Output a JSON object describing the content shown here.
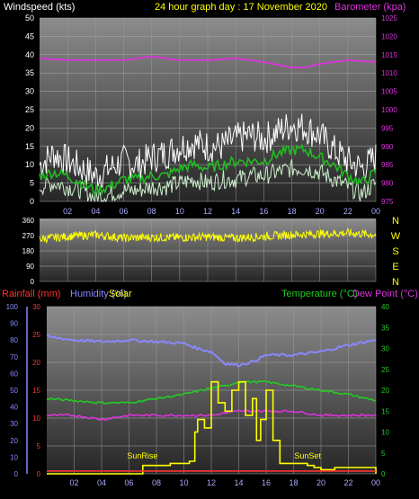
{
  "header": {
    "windspeed_label": "Windspeed (kts)",
    "title": "24 hour graph day : 17 November 2020",
    "barometer_label": "Barometer (kpa)"
  },
  "colors": {
    "background": "#000000",
    "panel_top": "#8a8a8a",
    "panel_bottom": "#2b2b2b",
    "windspeed": "#ffffff",
    "wind_avg": "#22bb22",
    "wind_light": "#cceecc",
    "barometer": "#dd33dd",
    "direction": "#ffff00",
    "rainfall": "#ff3333",
    "humidity": "#8888ff",
    "solar": "#ffff00",
    "temperature": "#22cc22",
    "dewpoint": "#dd33dd",
    "title": "#ffff00"
  },
  "chart_data": [
    {
      "type": "line",
      "name_panel": "wind",
      "x_ticks": [
        "02",
        "04",
        "06",
        "08",
        "10",
        "12",
        "14",
        "16",
        "18",
        "20",
        "22",
        "00"
      ],
      "y_left": {
        "label": "Windspeed (kts)",
        "range": [
          0,
          50
        ],
        "ticks": [
          0,
          5,
          10,
          15,
          20,
          25,
          30,
          35,
          40,
          45,
          50
        ]
      },
      "y_right": {
        "label": "Barometer (kpa)",
        "range": [
          975,
          1025
        ],
        "ticks": [
          975,
          980,
          985,
          990,
          995,
          1000,
          1005,
          1010,
          1015,
          1020,
          1025
        ]
      },
      "series": [
        {
          "kind": "gust",
          "hours": [
            0,
            1,
            2,
            3,
            4,
            5,
            6,
            7,
            8,
            9,
            10,
            11,
            12,
            13,
            14,
            15,
            16,
            17,
            18,
            19,
            20,
            21,
            22,
            23,
            24
          ],
          "values": [
            10,
            13,
            11,
            9,
            7,
            9,
            11,
            10,
            12,
            13,
            15,
            16,
            15,
            15,
            17,
            18,
            17,
            19,
            21,
            20,
            18,
            14,
            11,
            9,
            12
          ]
        },
        {
          "kind": "average",
          "hours": [
            0,
            1,
            2,
            3,
            4,
            5,
            6,
            7,
            8,
            9,
            10,
            11,
            12,
            13,
            14,
            15,
            16,
            17,
            18,
            19,
            20,
            21,
            22,
            23,
            24
          ],
          "values": [
            7,
            8,
            7,
            5,
            3,
            4,
            6,
            6,
            7,
            7,
            9,
            10,
            9,
            10,
            11,
            11,
            11,
            13,
            14,
            14,
            12,
            10,
            7,
            5,
            8
          ]
        },
        {
          "kind": "lull",
          "hours": [
            0,
            1,
            2,
            3,
            4,
            5,
            6,
            7,
            8,
            9,
            10,
            11,
            12,
            13,
            14,
            15,
            16,
            17,
            18,
            19,
            20,
            21,
            22,
            23,
            24
          ],
          "values": [
            4,
            5,
            4,
            3,
            1,
            2,
            3,
            3,
            4,
            4,
            5,
            6,
            5,
            6,
            6,
            7,
            7,
            8,
            9,
            9,
            8,
            6,
            4,
            2,
            5
          ]
        },
        {
          "kind": "barometer",
          "axis": "right",
          "hours": [
            0,
            2,
            4,
            6,
            8,
            10,
            12,
            14,
            16,
            18,
            19,
            20,
            22,
            24
          ],
          "values": [
            1014,
            1013.5,
            1013.5,
            1013.5,
            1014.5,
            1013.5,
            1013.5,
            1014,
            1013,
            1011.5,
            1011.5,
            1012.5,
            1013.5,
            1013
          ]
        }
      ]
    },
    {
      "type": "scatter",
      "name_panel": "wind_direction",
      "y_left": {
        "range": [
          0,
          360
        ],
        "ticks": [
          0,
          90,
          180,
          270,
          360
        ]
      },
      "compass": [
        "N",
        "W",
        "S",
        "E",
        "N"
      ],
      "series": [
        {
          "name": "direction",
          "hours": [
            0,
            2,
            4,
            6,
            8,
            10,
            12,
            14,
            16,
            18,
            20,
            22,
            24
          ],
          "values": [
            250,
            265,
            275,
            255,
            260,
            258,
            262,
            255,
            265,
            275,
            280,
            285,
            275
          ]
        }
      ]
    },
    {
      "type": "line",
      "name_panel": "temperature",
      "left_labels": {
        "rainfall": "Rainfall (mm)",
        "humidity": "Humidity (%)",
        "solar": "Solar"
      },
      "right_labels": {
        "temperature": "Temperature (°C)",
        "dewpoint": "Dew Point (°C)"
      },
      "y_humidity": {
        "range": [
          0,
          100
        ],
        "ticks": [
          0,
          10,
          20,
          30,
          40,
          50,
          60,
          70,
          80,
          90,
          100
        ]
      },
      "y_rain": {
        "range": [
          0,
          30
        ],
        "ticks": [
          0,
          5,
          10,
          15,
          20,
          25,
          30
        ]
      },
      "y_temp": {
        "range": [
          0,
          40
        ],
        "ticks": [
          0,
          5,
          10,
          15,
          20,
          25,
          30,
          35,
          40
        ]
      },
      "annotations": [
        {
          "text": "SunRise",
          "hour": 7.3
        },
        {
          "text": "SunSet",
          "hour": 19.5
        }
      ],
      "series": [
        {
          "name": "Humidity",
          "axis": "humidity",
          "hours": [
            0,
            2,
            4,
            6,
            8,
            10,
            11,
            12,
            13,
            14,
            15,
            16,
            18,
            20,
            22,
            24
          ],
          "values": [
            82,
            80,
            79,
            80,
            79,
            78,
            75,
            73,
            66,
            65,
            67,
            71,
            71,
            73,
            77,
            80
          ]
        },
        {
          "name": "Temperature",
          "axis": "temp",
          "hours": [
            0,
            2,
            4,
            6,
            8,
            10,
            12,
            13,
            14,
            15,
            16,
            18,
            20,
            22,
            24
          ],
          "values": [
            18,
            17.5,
            17,
            17,
            18,
            19,
            20.5,
            21,
            22,
            22,
            22,
            21,
            20,
            19,
            17.5
          ]
        },
        {
          "name": "Dew Point",
          "axis": "temp",
          "hours": [
            0,
            2,
            4,
            6,
            8,
            10,
            12,
            14,
            16,
            18,
            20,
            22,
            24
          ],
          "values": [
            14,
            14,
            13,
            14,
            14,
            14,
            14,
            15,
            15,
            15,
            14,
            14,
            14
          ]
        },
        {
          "name": "Solar",
          "axis": "temp",
          "hours": [
            0,
            6.8,
            7,
            8.5,
            9,
            10,
            10.4,
            10.8,
            11,
            11.5,
            12,
            12.5,
            13,
            13.5,
            14,
            14.5,
            15,
            15.3,
            15.6,
            16,
            16.5,
            17,
            19,
            19.5,
            20,
            21,
            22,
            24
          ],
          "values": [
            0,
            0,
            2,
            2,
            2.5,
            2.5,
            3,
            10,
            13,
            11,
            22,
            17,
            15,
            20,
            22,
            14,
            18,
            8,
            13,
            20,
            8,
            2.5,
            2,
            1.5,
            1,
            1.5,
            1.5,
            0
          ]
        },
        {
          "name": "Rainfall",
          "axis": "rain",
          "hours": [
            0,
            24
          ],
          "values": [
            0.5,
            0.5
          ]
        }
      ]
    }
  ]
}
